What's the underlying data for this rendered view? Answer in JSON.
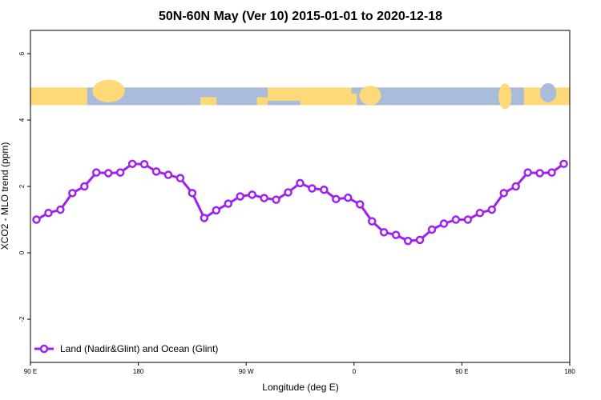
{
  "chart_data": {
    "type": "line",
    "title": "50N-60N May (Ver 10)   2015-01-01 to 2020-12-18",
    "xlabel": "Longitude (deg E)",
    "ylabel": "XCO2 - MLO trend (ppm)",
    "xlim": [
      90,
      540
    ],
    "ylim": [
      -3.3,
      6.7
    ],
    "x_ticks": [
      {
        "value": 90,
        "label": "90 E"
      },
      {
        "value": 180,
        "label": "180"
      },
      {
        "value": 270,
        "label": "90 W"
      },
      {
        "value": 360,
        "label": "0"
      },
      {
        "value": 450,
        "label": "90 E"
      },
      {
        "value": 540,
        "label": "180"
      }
    ],
    "y_ticks": [
      {
        "value": -2,
        "label": "-2"
      },
      {
        "value": 0,
        "label": "0"
      },
      {
        "value": 2,
        "label": "2"
      },
      {
        "value": 4,
        "label": "4"
      },
      {
        "value": 6,
        "label": "6"
      }
    ],
    "grid": false,
    "legend_position": "bottom-left",
    "map_strip": {
      "ymin": 4.45,
      "ymax": 4.98,
      "ocean_color": "#a9bcdc",
      "land_color": "#fdd978"
    },
    "series": [
      {
        "name": "Land (Nadir&Glint) and Ocean (Glint)",
        "color": "#a020f0",
        "x": [
          95,
          105,
          115,
          125,
          135,
          145,
          155,
          165,
          175,
          185,
          195,
          205,
          215,
          225,
          235,
          245,
          255,
          265,
          275,
          285,
          295,
          305,
          315,
          325,
          335,
          345,
          355,
          365,
          375,
          385,
          395,
          405,
          415,
          425,
          435,
          445,
          455,
          465,
          475,
          485,
          495,
          505,
          515,
          525,
          535
        ],
        "y": [
          1.0,
          1.2,
          1.3,
          1.8,
          2.0,
          2.42,
          2.4,
          2.42,
          2.68,
          2.67,
          2.45,
          2.35,
          2.25,
          1.8,
          1.05,
          1.28,
          1.48,
          1.7,
          1.75,
          1.65,
          1.6,
          1.82,
          2.1,
          1.94,
          1.9,
          1.62,
          1.66,
          1.46,
          0.95,
          0.62,
          0.54,
          0.36,
          0.39,
          0.7,
          0.88,
          1.0,
          1.0,
          1.2,
          1.3,
          1.8,
          2.0,
          2.42,
          2.4,
          2.42,
          2.68
        ]
      }
    ]
  }
}
